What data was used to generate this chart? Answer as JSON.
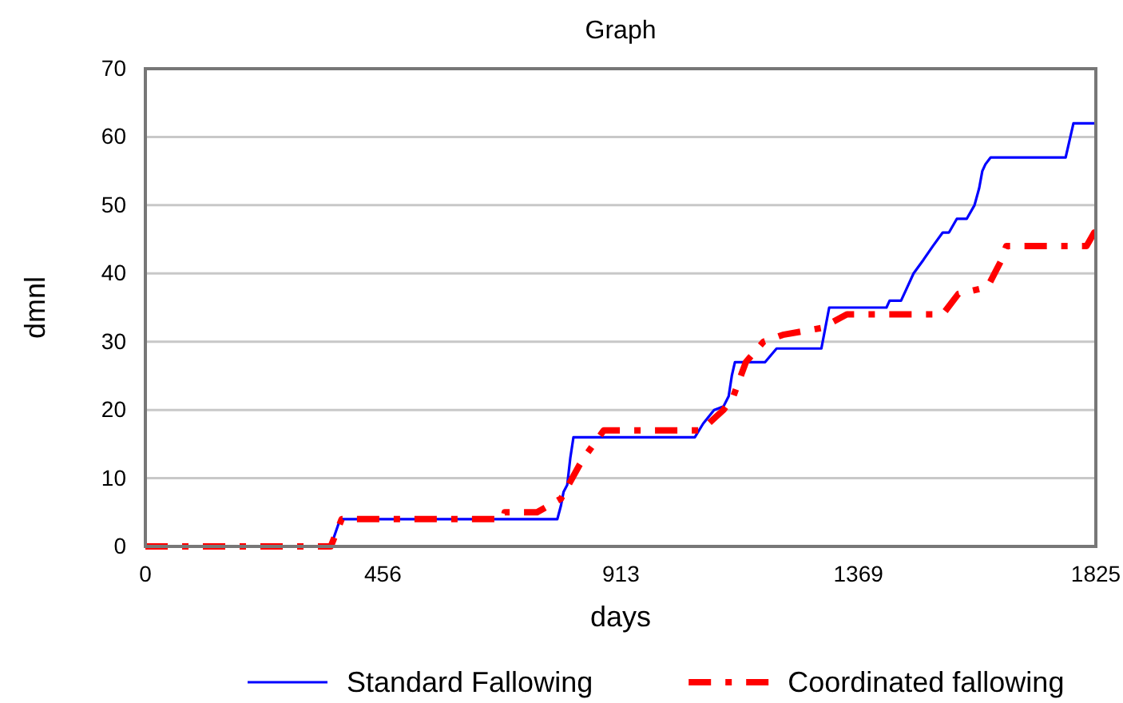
{
  "chart_data": {
    "type": "step",
    "title": "Graph",
    "xlabel": "days",
    "ylabel": "dmnl",
    "xlim": [
      0,
      1825
    ],
    "xticks": [
      0,
      456,
      913,
      1369,
      1825
    ],
    "ylim": [
      0,
      70
    ],
    "yticks": [
      0,
      10,
      20,
      30,
      40,
      50,
      60,
      70
    ],
    "grid": "y",
    "legend": "bottom",
    "marker": "none",
    "series": [
      {
        "name": "Standard Fallowing",
        "color": "#0000ff",
        "line_style": "solid",
        "x": [
          0,
          356,
          374,
          791,
          798,
          803,
          810,
          816,
          822,
          840,
          1055,
          1071,
          1092,
          1110,
          1120,
          1126,
          1132,
          1190,
          1212,
          1298,
          1313,
          1423,
          1429,
          1451,
          1463,
          1475,
          1494,
          1512,
          1531,
          1543,
          1558,
          1577,
          1592,
          1601,
          1607,
          1613,
          1623,
          1767,
          1782,
          1825
        ],
        "values": [
          0,
          0,
          4,
          4,
          6,
          8,
          9,
          13,
          16,
          16,
          16,
          18,
          20,
          20.5,
          22,
          25,
          27,
          27,
          29,
          29,
          35,
          35,
          36,
          36,
          38,
          40,
          42,
          44,
          46,
          46,
          48,
          48,
          50,
          52.5,
          55,
          56,
          57,
          57,
          62,
          62
        ]
      },
      {
        "name": "Coordinated fallowing",
        "color": "#ff0000",
        "line_style": "dashed",
        "x": [
          0,
          356,
          377,
          687,
          690,
          752,
          798,
          834,
          847,
          880,
          1003,
          1067,
          1110,
          1129,
          1153,
          1187,
          1224,
          1298,
          1347,
          1399,
          1531,
          1561,
          1617,
          1644,
          1653,
          1807,
          1822,
          1825
        ],
        "values": [
          0,
          0,
          4,
          4,
          5,
          5,
          7,
          12,
          13.5,
          17,
          17,
          17,
          20,
          22,
          27,
          30,
          31,
          32,
          34,
          34,
          34,
          37,
          38,
          42,
          44,
          44,
          46,
          46
        ]
      }
    ]
  }
}
